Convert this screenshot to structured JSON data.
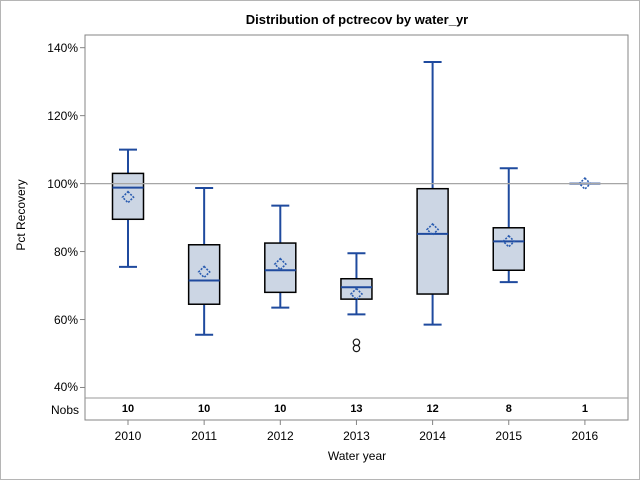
{
  "page": {
    "window_title": "Distribution of pctrecov by water_yr"
  },
  "colors": {
    "background": "#ffffff",
    "frame": "#848484",
    "reference_line": "#a6a6a6",
    "separator_line": "#9a9a9a",
    "box_fill": "#ccd6e4",
    "box_border": "#000000",
    "whisker_line": "#1f4a9e",
    "median_line": "#1f4a9e",
    "mean_marker": "#2a5cb0",
    "outlier_marker": "#1a1a1a",
    "text": "#000000"
  },
  "chart_data": {
    "type": "boxplot",
    "title": "Distribution of pctrecov by water_yr",
    "xlabel": "Water year",
    "ylabel": "Pct Recovery",
    "nobs_label": "Nobs",
    "legend": "none",
    "grid": "off",
    "reference_line_value": 100,
    "y_ticks": [
      {
        "value": 140,
        "label": "140%"
      },
      {
        "value": 120,
        "label": "120%"
      },
      {
        "value": 100,
        "label": "100%"
      },
      {
        "value": 80,
        "label": "80%"
      },
      {
        "value": 60,
        "label": "60%"
      },
      {
        "value": 40,
        "label": "40%"
      }
    ],
    "ylim": [
      36,
      144
    ],
    "categories": [
      "2010",
      "2011",
      "2012",
      "2013",
      "2014",
      "2015",
      "2016"
    ],
    "nobs": [
      "10",
      "10",
      "10",
      "13",
      "12",
      "8",
      "1"
    ],
    "boxes": [
      {
        "year": "2010",
        "whisker_low": 75.5,
        "q1": 89.5,
        "median": 98.8,
        "mean": 96.0,
        "q3": 103.0,
        "whisker_high": 110.0,
        "outliers": []
      },
      {
        "year": "2011",
        "whisker_low": 55.5,
        "q1": 64.5,
        "median": 71.5,
        "mean": 74.0,
        "q3": 82.0,
        "whisker_high": 98.7,
        "outliers": []
      },
      {
        "year": "2012",
        "whisker_low": 63.5,
        "q1": 68.0,
        "median": 74.5,
        "mean": 76.3,
        "q3": 82.5,
        "whisker_high": 93.5,
        "outliers": []
      },
      {
        "year": "2013",
        "whisker_low": 61.5,
        "q1": 66.0,
        "median": 69.5,
        "mean": 67.5,
        "q3": 72.0,
        "whisker_high": 79.5,
        "outliers": [
          53.3,
          51.5
        ]
      },
      {
        "year": "2014",
        "whisker_low": 58.5,
        "q1": 67.5,
        "median": 85.2,
        "mean": 86.5,
        "q3": 98.5,
        "whisker_high": 135.8,
        "outliers": []
      },
      {
        "year": "2015",
        "whisker_low": 71.0,
        "q1": 74.5,
        "median": 83.0,
        "mean": 83.0,
        "q3": 87.0,
        "whisker_high": 104.5,
        "outliers": []
      },
      {
        "year": "2016",
        "whisker_low": 100.0,
        "q1": 100.0,
        "median": 100.0,
        "mean": 100.0,
        "q3": 100.0,
        "whisker_high": 100.0,
        "outliers": [],
        "single_value": true
      }
    ]
  }
}
